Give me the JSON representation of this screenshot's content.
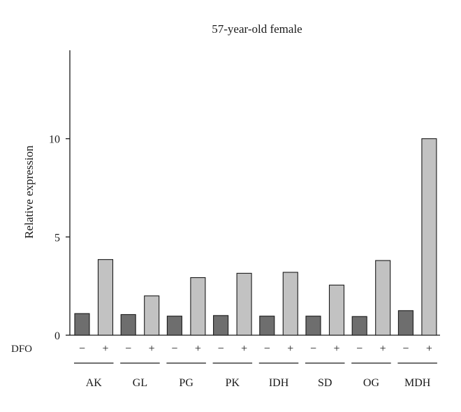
{
  "chart_data": {
    "type": "bar",
    "title": "57-year-old female",
    "xlabel": "",
    "ylabel": "Relative expression",
    "ylim": [
      0,
      14.5
    ],
    "yticks": [
      0,
      5,
      10
    ],
    "treatment_label": "DFO",
    "treatment_signs": [
      "−",
      "+"
    ],
    "categories": [
      "AK",
      "GL",
      "PG",
      "PK",
      "IDH",
      "SD",
      "OG",
      "MDH"
    ],
    "series": [
      {
        "name": "−",
        "values": [
          1.1,
          1.05,
          0.97,
          1.0,
          0.97,
          0.97,
          0.95,
          1.25
        ]
      },
      {
        "name": "+",
        "values": [
          3.85,
          2.0,
          2.93,
          3.15,
          3.2,
          2.55,
          3.8,
          10.0
        ]
      }
    ],
    "colors": {
      "minus": "#6e6e6e",
      "plus": "#c2c2c2",
      "stroke": "#1a1a1a"
    },
    "grid": false,
    "legend": "none"
  }
}
